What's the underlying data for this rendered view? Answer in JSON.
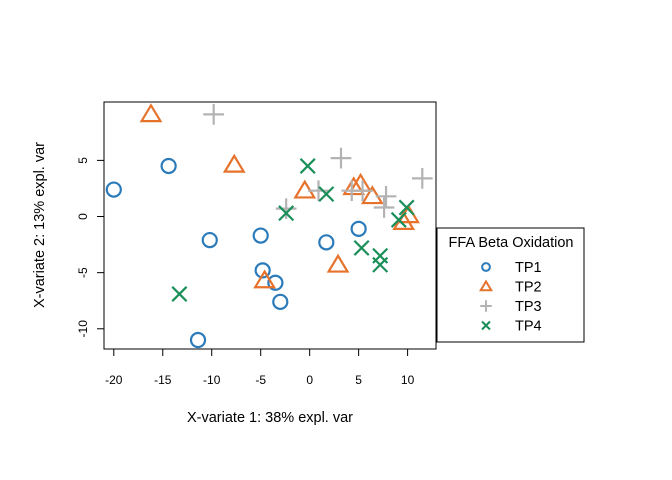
{
  "chart_data": {
    "type": "scatter",
    "title": "",
    "xlabel": "X-variate 1: 38% expl. var",
    "ylabel": "X-variate 2: 13% expl. var",
    "xlim": [
      -21.0,
      12.9
    ],
    "ylim": [
      -11.8,
      10.2
    ],
    "xticks": [
      -20,
      -15,
      -10,
      -5,
      0,
      5,
      10
    ],
    "yticks": [
      -10,
      -5,
      0,
      5
    ],
    "grid": false,
    "legend": {
      "title": "FFA Beta Oxidation",
      "placement": "right"
    },
    "series": [
      {
        "name": "TP1",
        "marker": "circle",
        "color": "#2b7bba",
        "points": [
          [
            -20.0,
            2.4
          ],
          [
            -14.4,
            4.5
          ],
          [
            -10.2,
            -2.1
          ],
          [
            -5.0,
            -1.7
          ],
          [
            -4.8,
            -4.8
          ],
          [
            -3.5,
            -5.9
          ],
          [
            -3.0,
            -7.6
          ],
          [
            -11.4,
            -11.0
          ],
          [
            1.7,
            -2.3
          ],
          [
            5.0,
            -1.1
          ]
        ]
      },
      {
        "name": "TP2",
        "marker": "triangle",
        "color": "#e6722b",
        "points": [
          [
            -16.2,
            9.1
          ],
          [
            -7.7,
            4.6
          ],
          [
            -4.6,
            -5.7
          ],
          [
            -0.5,
            2.3
          ],
          [
            2.9,
            -4.3
          ],
          [
            4.5,
            2.6
          ],
          [
            5.2,
            2.9
          ],
          [
            6.4,
            1.8
          ],
          [
            10.1,
            0.1
          ],
          [
            9.6,
            -0.5
          ]
        ]
      },
      {
        "name": "TP3",
        "marker": "plus",
        "color": "#b3b3b3",
        "points": [
          [
            -9.8,
            9.1
          ],
          [
            3.2,
            5.2
          ],
          [
            0.9,
            2.3
          ],
          [
            -2.4,
            0.7
          ],
          [
            4.3,
            2.3
          ],
          [
            5.4,
            2.3
          ],
          [
            7.8,
            1.8
          ],
          [
            7.6,
            0.8
          ],
          [
            11.5,
            3.4
          ]
        ]
      },
      {
        "name": "TP4",
        "marker": "x",
        "color": "#1a8f5a",
        "points": [
          [
            -0.2,
            4.5
          ],
          [
            1.7,
            2.0
          ],
          [
            -2.4,
            0.3
          ],
          [
            -13.3,
            -6.9
          ],
          [
            9.9,
            0.8
          ],
          [
            9.1,
            -0.3
          ],
          [
            5.3,
            -2.8
          ],
          [
            7.2,
            -3.5
          ],
          [
            7.2,
            -4.3
          ]
        ]
      }
    ]
  }
}
